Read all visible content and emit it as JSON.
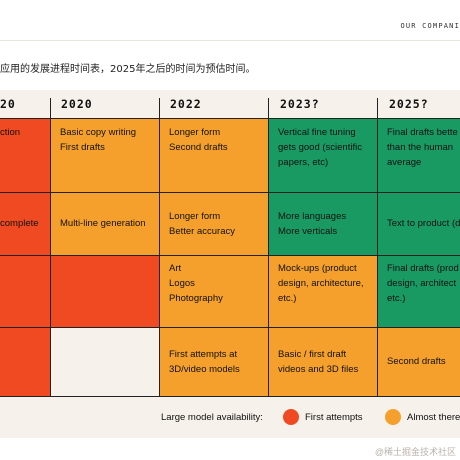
{
  "header": {
    "companion_text": "OUR COMPANI"
  },
  "caption": "应用的发展进程时间表，2025年之后的时间为预估时间。",
  "columns": [
    "20",
    "2020",
    "2022",
    "2023?",
    "2025?"
  ],
  "rows": [
    {
      "cells": [
        {
          "lines": [
            "ction"
          ],
          "status": "first-attempts"
        },
        {
          "lines": [
            "Basic copy writing",
            "First drafts"
          ],
          "status": "almost-there"
        },
        {
          "lines": [
            "Longer form",
            "Second drafts"
          ],
          "status": "almost-there"
        },
        {
          "lines": [
            "Vertical fine tuning",
            "gets good (scientific",
            "papers, etc)"
          ],
          "status": "ready"
        },
        {
          "lines": [
            "Final drafts bette",
            "than the human",
            "average"
          ],
          "status": "ready"
        }
      ]
    },
    {
      "cells": [
        {
          "lines": [
            "complete"
          ],
          "status": "first-attempts"
        },
        {
          "lines": [
            "Multi-line generation"
          ],
          "status": "almost-there"
        },
        {
          "lines": [
            "Longer form",
            "Better accuracy"
          ],
          "status": "almost-there"
        },
        {
          "lines": [
            "More languages",
            "More verticals"
          ],
          "status": "ready"
        },
        {
          "lines": [
            "Text to product (d"
          ],
          "status": "ready"
        }
      ]
    },
    {
      "cells": [
        {
          "lines": [],
          "status": "first-attempts"
        },
        {
          "lines": [],
          "status": "first-attempts"
        },
        {
          "lines": [
            "Art",
            "Logos",
            "Photography"
          ],
          "status": "almost-there"
        },
        {
          "lines": [
            "Mock-ups (product",
            "design, architecture,",
            "etc.)"
          ],
          "status": "almost-there"
        },
        {
          "lines": [
            "Final drafts (prod",
            "design, architect",
            "etc.)"
          ],
          "status": "ready"
        }
      ]
    },
    {
      "cells": [
        {
          "lines": [],
          "status": "first-attempts"
        },
        {
          "lines": [],
          "status": "none"
        },
        {
          "lines": [
            "First attempts at",
            "3D/video models"
          ],
          "status": "almost-there"
        },
        {
          "lines": [
            "Basic / first draft",
            "videos and 3D files"
          ],
          "status": "almost-there"
        },
        {
          "lines": [
            "Second drafts"
          ],
          "status": "almost-there"
        }
      ]
    }
  ],
  "legend": {
    "label": "Large model availability:",
    "items": [
      {
        "text": "First attempts",
        "color": "#f04a22"
      },
      {
        "text": "Almost there",
        "color": "#f5a02c"
      }
    ]
  },
  "colors": {
    "first-attempts": "#f04a22",
    "almost-there": "#f5a02c",
    "ready": "#1a9a63",
    "none": "#f6f1ea"
  },
  "watermark": "@稀土掘金技术社区"
}
